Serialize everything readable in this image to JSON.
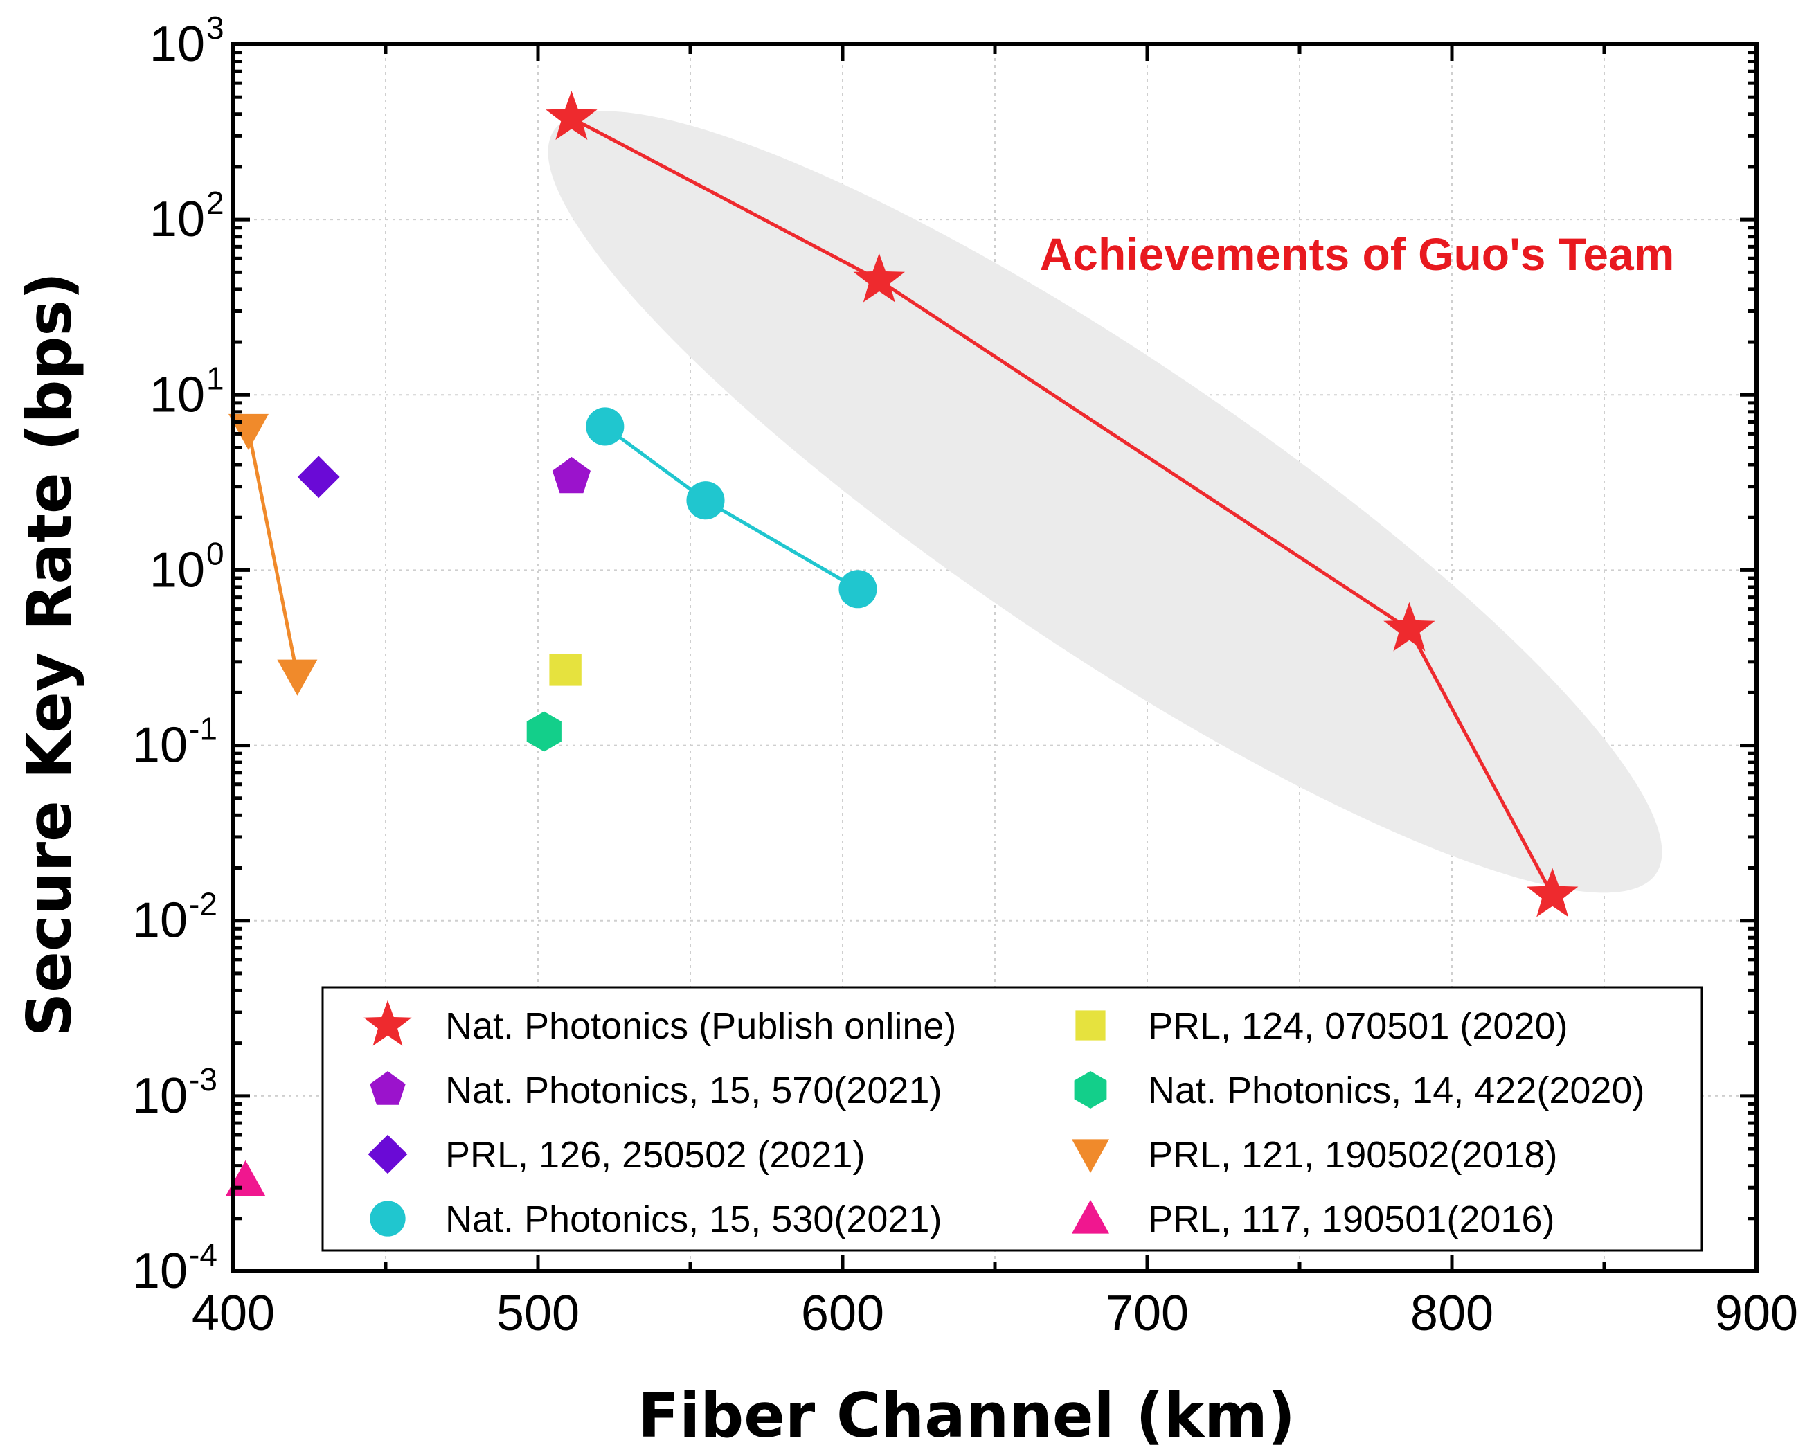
{
  "chart_data": {
    "type": "scatter",
    "xlabel": "Fiber Channel (km)",
    "ylabel": "Secure Key Rate (bps)",
    "xlim": [
      400,
      900
    ],
    "ylim": [
      0.0001,
      1000
    ],
    "yscale": "log",
    "grid": true,
    "legend_position": "bottom-center",
    "x_ticks": [
      "400",
      "500",
      "600",
      "700",
      "800",
      "900"
    ],
    "y_ticks": [
      {
        "base": "10",
        "exp": "-4"
      },
      {
        "base": "10",
        "exp": "-3"
      },
      {
        "base": "10",
        "exp": "-2"
      },
      {
        "base": "10",
        "exp": "-1"
      },
      {
        "base": "10",
        "exp": "0"
      },
      {
        "base": "10",
        "exp": "1"
      },
      {
        "base": "10",
        "exp": "2"
      },
      {
        "base": "10",
        "exp": "3"
      }
    ],
    "annotation": {
      "text": "Achievements of Guo's Team",
      "color": "#e8191f"
    },
    "highlight_color": "#ebebeb",
    "series": [
      {
        "name": "Nat. Photonics (Publish online)",
        "marker": "star",
        "color": "#ee2a2e",
        "line": true,
        "x": [
          511,
          612,
          786,
          833
        ],
        "y": [
          380,
          45,
          0.46,
          0.014
        ]
      },
      {
        "name": "Nat. Photonics, 15, 570(2021)",
        "marker": "pentagon",
        "color": "#9b13cc",
        "line": false,
        "x": [
          511
        ],
        "y": [
          3.4
        ]
      },
      {
        "name": "PRL, 126, 250502 (2021)",
        "marker": "diamond",
        "color": "#6a0ad6",
        "line": false,
        "x": [
          428
        ],
        "y": [
          3.4
        ]
      },
      {
        "name": "Nat. Photonics, 15, 530(2021)",
        "marker": "circle",
        "color": "#20c6cf",
        "line": true,
        "x": [
          522,
          555,
          605
        ],
        "y": [
          6.6,
          2.5,
          0.78
        ]
      },
      {
        "name": "PRL, 124, 070501 (2020)",
        "marker": "square",
        "color": "#e6e23e",
        "line": false,
        "x": [
          509
        ],
        "y": [
          0.27
        ]
      },
      {
        "name": "Nat. Photonics, 14, 422(2020)",
        "marker": "hexagon",
        "color": "#13cf8a",
        "line": false,
        "x": [
          502
        ],
        "y": [
          0.12
        ]
      },
      {
        "name": "PRL, 121, 190502(2018)",
        "marker": "triangle-down",
        "color": "#f08a2b",
        "line": true,
        "x": [
          405,
          421
        ],
        "y": [
          6.3,
          0.25
        ]
      },
      {
        "name": "PRL, 117, 190501(2016)",
        "marker": "triangle-up",
        "color": "#f0178f",
        "line": false,
        "x": [
          404
        ],
        "y": [
          0.00033
        ]
      }
    ]
  }
}
